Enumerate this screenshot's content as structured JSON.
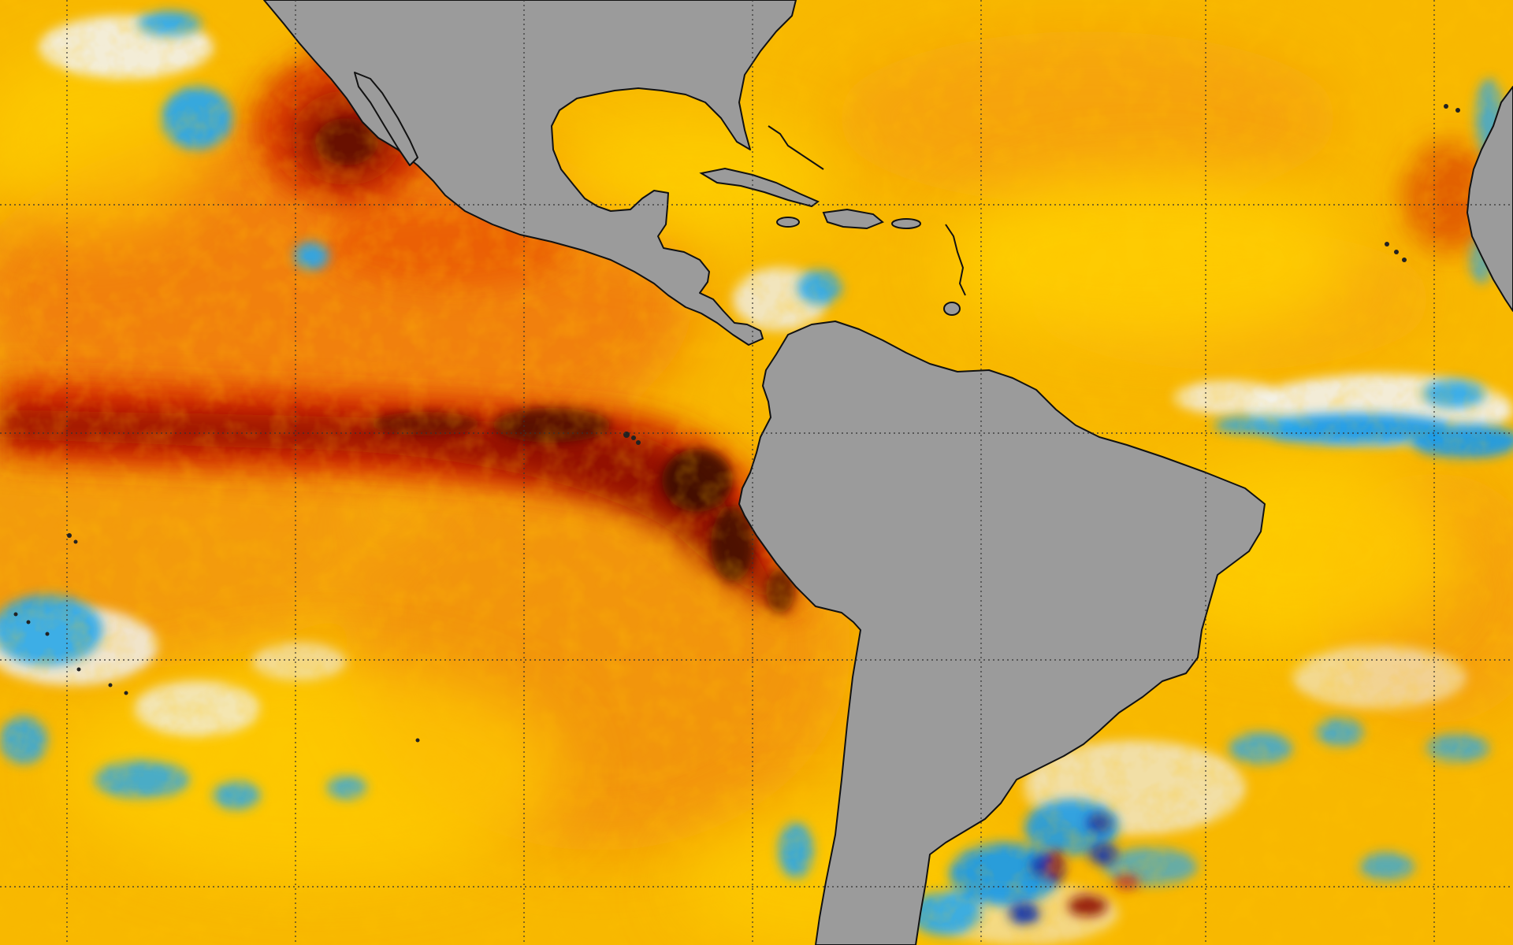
{
  "map": {
    "projection": "equirectangular",
    "graticule": "dotted",
    "land_color": "#9b9b9b",
    "coastline_color": "#111111",
    "ocean_palette": {
      "very_warm": "#3a0a04",
      "strong_warm": "#8e1204",
      "warm": "#e83a02",
      "moderate_warm": "#f27b08",
      "slight_warm": "#ffcc00",
      "neutral": "#eeeeee",
      "cool": "#2aa7e9",
      "strong_cool": "#1e3ca8"
    },
    "features": [
      {
        "name": "equatorial-pacific-warm-tongue",
        "level": "very_warm"
      },
      {
        "name": "peru-coast-warm-anomaly",
        "level": "very_warm"
      },
      {
        "name": "baja-california-warm-anomaly",
        "level": "strong_warm"
      },
      {
        "name": "equatorial-atlantic-cool-band",
        "level": "cool"
      },
      {
        "name": "south-atlantic-cool-patches",
        "level": "strong_cool"
      }
    ]
  }
}
